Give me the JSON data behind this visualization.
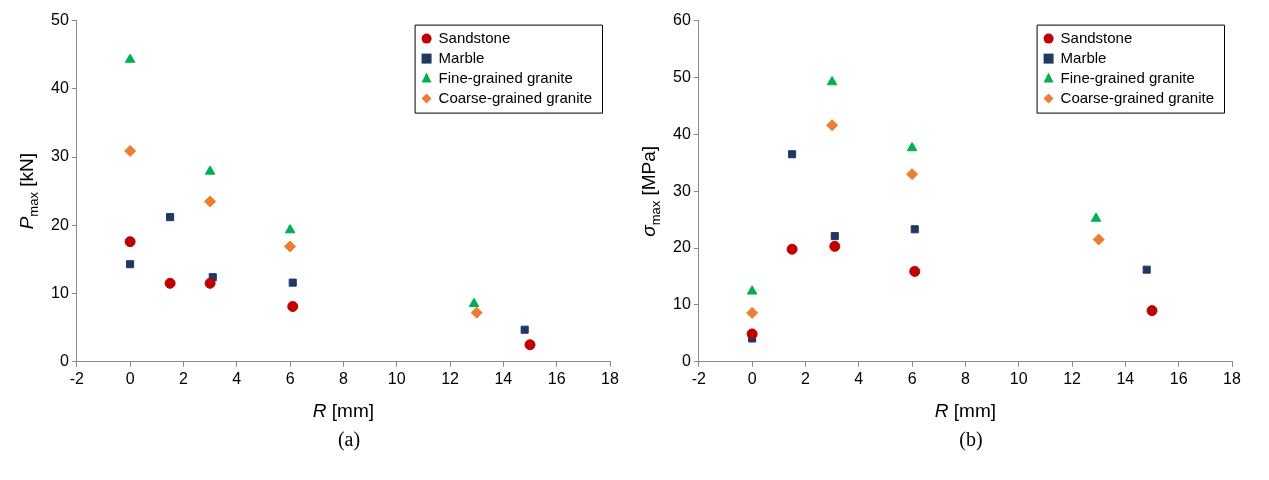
{
  "chart_data": [
    {
      "type": "scatter",
      "xlabel": "R [mm]",
      "ylabel": "P$_{max}$ [kN]",
      "xlim": [
        -2,
        18
      ],
      "xticks": [
        -2,
        0,
        2,
        4,
        6,
        8,
        10,
        12,
        14,
        16,
        18
      ],
      "ylim": [
        0,
        50
      ],
      "yticks": [
        0,
        10,
        20,
        30,
        40,
        50
      ],
      "grid": false,
      "legend": "top right",
      "annotations": [
        "(a)"
      ],
      "series": [
        {
          "name": "Sandstone",
          "color": "#c00000",
          "marker": "circle",
          "x": [
            0,
            1.5,
            3,
            6.1,
            15
          ],
          "values": [
            17.6,
            11.5,
            11.5,
            8.1,
            2.5
          ]
        },
        {
          "name": "Marble",
          "color": "#1f3864",
          "marker": "square",
          "x": [
            0,
            1.5,
            3.1,
            6.1,
            14.8
          ],
          "values": [
            14.3,
            21.2,
            12.4,
            11.6,
            4.7
          ]
        },
        {
          "name": "Fine-grained granite",
          "color": "#00b050",
          "marker": "triangle",
          "x": [
            0,
            3,
            6,
            12.9
          ],
          "values": [
            44.3,
            27.9,
            19.3,
            8.5
          ]
        },
        {
          "name": "Coarse-grained granite",
          "color": "#ed7d31",
          "marker": "diamond",
          "x": [
            0,
            3,
            6,
            13
          ],
          "values": [
            30.9,
            23.5,
            16.9,
            7.2
          ]
        }
      ]
    },
    {
      "type": "scatter",
      "xlabel": "R [mm]",
      "ylabel": "σ$_{max}$ [MPa]",
      "xlim": [
        -2,
        18
      ],
      "xticks": [
        -2,
        0,
        2,
        4,
        6,
        8,
        10,
        12,
        14,
        16,
        18
      ],
      "ylim": [
        0,
        60
      ],
      "yticks": [
        0,
        10,
        20,
        30,
        40,
        50,
        60
      ],
      "grid": false,
      "legend": "top right",
      "annotations": [
        "(b)"
      ],
      "series": [
        {
          "name": "Sandstone",
          "color": "#c00000",
          "marker": "circle",
          "x": [
            0,
            1.5,
            3.1,
            6.1,
            15
          ],
          "values": [
            4.9,
            19.8,
            20.3,
            15.9,
            9.0
          ]
        },
        {
          "name": "Marble",
          "color": "#1f3864",
          "marker": "square",
          "x": [
            0,
            1.5,
            3.1,
            6.1,
            14.8
          ],
          "values": [
            4.1,
            36.5,
            22.1,
            23.3,
            16.2
          ]
        },
        {
          "name": "Fine-grained granite",
          "color": "#00b050",
          "marker": "triangle",
          "x": [
            0,
            3,
            6,
            12.9
          ],
          "values": [
            12.4,
            49.2,
            37.6,
            25.2
          ]
        },
        {
          "name": "Coarse-grained granite",
          "color": "#ed7d31",
          "marker": "diamond",
          "x": [
            0,
            3,
            6,
            13
          ],
          "values": [
            8.6,
            41.6,
            33.0,
            21.5
          ]
        }
      ]
    }
  ]
}
